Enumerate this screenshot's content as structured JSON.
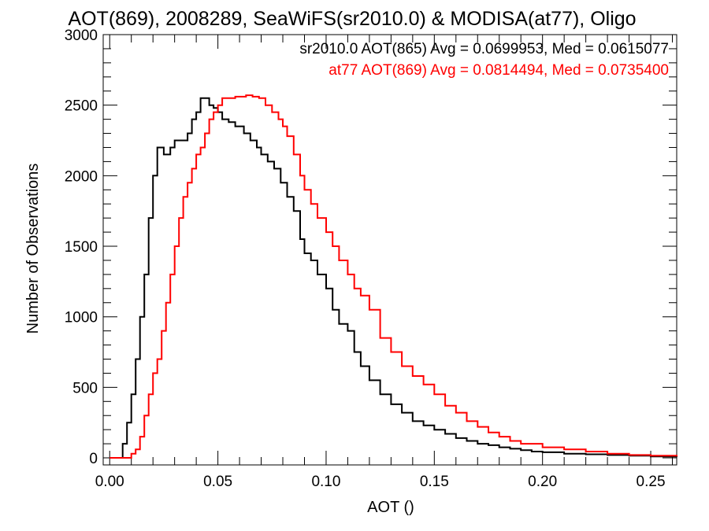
{
  "chart_data": {
    "type": "line",
    "style": "step-histogram",
    "title": "AOT(869), 2008289, SeaWiFS(sr2010.0) & MODISA(at77), Oligo",
    "xlabel": "AOT ()",
    "ylabel": "Number of Observations",
    "xlim": [
      -0.003,
      0.262
    ],
    "ylim": [
      -50,
      3000
    ],
    "xticks": [
      0.0,
      0.05,
      0.1,
      0.15,
      0.2,
      0.25
    ],
    "xtick_labels": [
      "0.00",
      "0.05",
      "0.10",
      "0.15",
      "0.20",
      "0.25"
    ],
    "yticks": [
      0,
      500,
      1000,
      1500,
      2000,
      2500,
      3000
    ],
    "ytick_labels": [
      "0",
      "500",
      "1000",
      "1500",
      "2000",
      "2500",
      "3000"
    ],
    "grid": false,
    "legend_position": "top-right",
    "legend": [
      "sr2010.0 AOT(865) Avg = 0.0699953, Med = 0.0615077",
      "at77 AOT(869) Avg = 0.0814494, Med = 0.0735400"
    ],
    "series": [
      {
        "color": "#000000",
        "x": [
          0.0,
          0.004,
          0.006,
          0.008,
          0.01,
          0.012,
          0.014,
          0.016,
          0.018,
          0.02,
          0.022,
          0.025,
          0.028,
          0.03,
          0.033,
          0.036,
          0.038,
          0.04,
          0.042,
          0.044,
          0.046,
          0.048,
          0.05,
          0.052,
          0.055,
          0.058,
          0.06,
          0.062,
          0.065,
          0.068,
          0.07,
          0.073,
          0.076,
          0.079,
          0.082,
          0.085,
          0.088,
          0.09,
          0.093,
          0.096,
          0.1,
          0.103,
          0.106,
          0.11,
          0.113,
          0.116,
          0.12,
          0.125,
          0.13,
          0.135,
          0.14,
          0.145,
          0.15,
          0.155,
          0.16,
          0.165,
          0.17,
          0.175,
          0.18,
          0.185,
          0.19,
          0.195,
          0.2,
          0.21,
          0.22,
          0.23,
          0.24,
          0.25,
          0.262
        ],
        "y": [
          0,
          0,
          100,
          250,
          450,
          700,
          1000,
          1300,
          1700,
          2000,
          2200,
          2150,
          2200,
          2250,
          2250,
          2300,
          2400,
          2450,
          2550,
          2550,
          2500,
          2480,
          2450,
          2400,
          2380,
          2350,
          2350,
          2300,
          2250,
          2200,
          2150,
          2100,
          2050,
          1950,
          1850,
          1750,
          1550,
          1450,
          1400,
          1300,
          1200,
          1050,
          950,
          900,
          750,
          650,
          550,
          450,
          380,
          320,
          260,
          230,
          200,
          170,
          140,
          120,
          100,
          90,
          75,
          65,
          55,
          45,
          40,
          30,
          25,
          20,
          15,
          10,
          5
        ]
      },
      {
        "color": "#ff0000",
        "x": [
          0.0,
          0.008,
          0.01,
          0.012,
          0.014,
          0.016,
          0.018,
          0.02,
          0.022,
          0.024,
          0.026,
          0.028,
          0.03,
          0.032,
          0.034,
          0.036,
          0.038,
          0.04,
          0.042,
          0.044,
          0.046,
          0.048,
          0.05,
          0.052,
          0.054,
          0.056,
          0.058,
          0.06,
          0.063,
          0.066,
          0.069,
          0.072,
          0.075,
          0.078,
          0.08,
          0.082,
          0.085,
          0.088,
          0.09,
          0.093,
          0.096,
          0.1,
          0.103,
          0.106,
          0.11,
          0.113,
          0.116,
          0.12,
          0.125,
          0.13,
          0.135,
          0.14,
          0.145,
          0.15,
          0.155,
          0.16,
          0.165,
          0.17,
          0.175,
          0.18,
          0.185,
          0.19,
          0.2,
          0.21,
          0.22,
          0.23,
          0.24,
          0.25,
          0.262
        ],
        "y": [
          0,
          0,
          30,
          60,
          150,
          300,
          450,
          600,
          700,
          900,
          1100,
          1300,
          1500,
          1700,
          1850,
          1950,
          2050,
          2150,
          2200,
          2300,
          2400,
          2450,
          2500,
          2550,
          2550,
          2550,
          2560,
          2560,
          2570,
          2560,
          2550,
          2500,
          2450,
          2400,
          2350,
          2280,
          2150,
          2000,
          1900,
          1800,
          1700,
          1600,
          1500,
          1400,
          1300,
          1200,
          1150,
          1050,
          850,
          750,
          650,
          580,
          520,
          450,
          370,
          320,
          260,
          220,
          180,
          150,
          120,
          100,
          75,
          60,
          45,
          30,
          20,
          15,
          10
        ]
      }
    ]
  }
}
